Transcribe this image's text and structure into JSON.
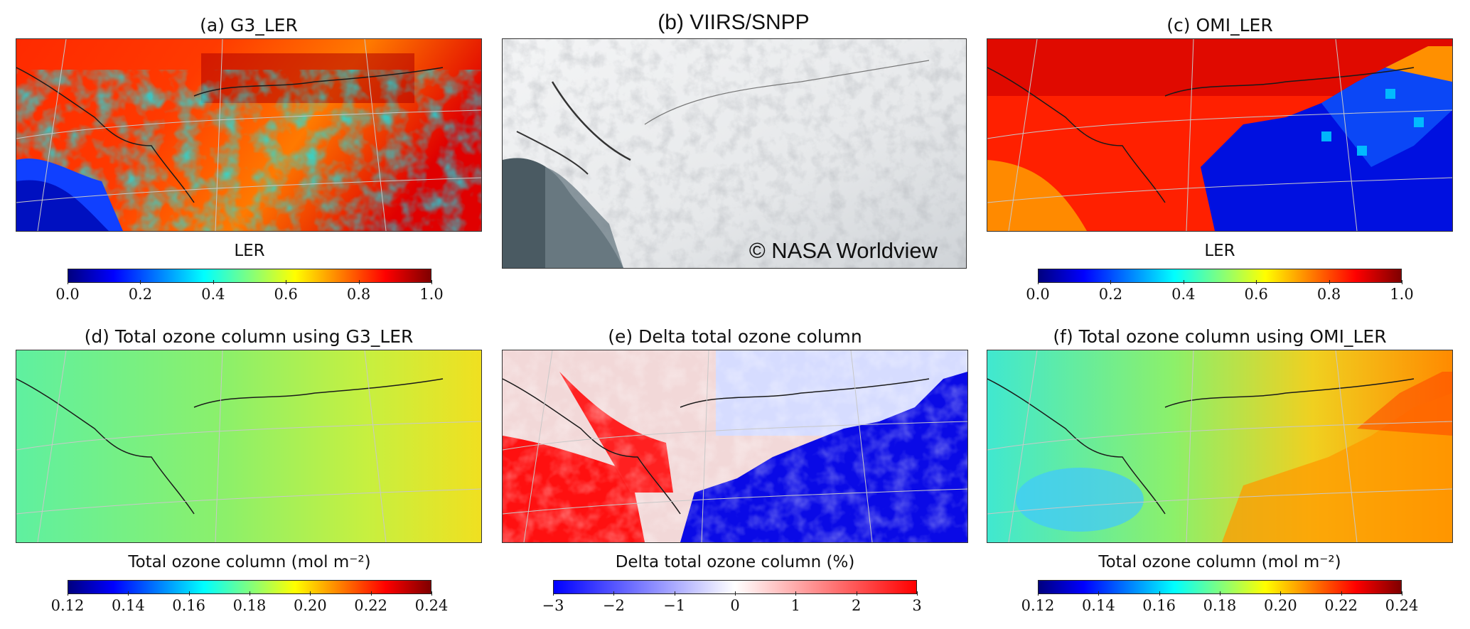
{
  "panels": {
    "a": {
      "title": "(a) G3_LER"
    },
    "b": {
      "title": "(b)  VIIRS/SNPP",
      "credit": "© NASA Worldview"
    },
    "c": {
      "title": "(c) OMI_LER"
    },
    "d": {
      "title": "(d) Total ozone column using G3_LER"
    },
    "e": {
      "title": "(e) Delta total ozone column"
    },
    "f": {
      "title": "(f) Total ozone column using OMI_LER"
    }
  },
  "colorbars": {
    "ler_a": {
      "label": "LER",
      "ticks": [
        "0.0",
        "0.2",
        "0.4",
        "0.6",
        "0.8",
        "1.0"
      ],
      "colormap": "jet"
    },
    "ler_c": {
      "label": "LER",
      "ticks": [
        "0.0",
        "0.2",
        "0.4",
        "0.6",
        "0.8",
        "1.0"
      ],
      "colormap": "jet"
    },
    "ozone_d": {
      "label": "Total ozone column (mol m⁻²)",
      "ticks": [
        "0.12",
        "0.14",
        "0.16",
        "0.18",
        "0.20",
        "0.22",
        "0.24"
      ],
      "colormap": "jet"
    },
    "delta_e": {
      "label": "Delta total ozone column (%)",
      "ticks": [
        "−3",
        "−2",
        "−1",
        "0",
        "1",
        "2",
        "3"
      ],
      "colormap": "bwr"
    },
    "ozone_f": {
      "label": "Total ozone column (mol m⁻²)",
      "ticks": [
        "0.12",
        "0.14",
        "0.16",
        "0.18",
        "0.20",
        "0.22",
        "0.24"
      ],
      "colormap": "jet"
    }
  },
  "colors": {
    "jet": [
      "#00007f",
      "#0000ff",
      "#007fff",
      "#00ffff",
      "#7fff7f",
      "#ffff00",
      "#ff7f00",
      "#ff0000",
      "#7f0000"
    ],
    "bwr": [
      "#0000ff",
      "#ffffff",
      "#ff0000"
    ],
    "coastline": "#1a1a1a",
    "graticule": "#c8c8c8"
  }
}
